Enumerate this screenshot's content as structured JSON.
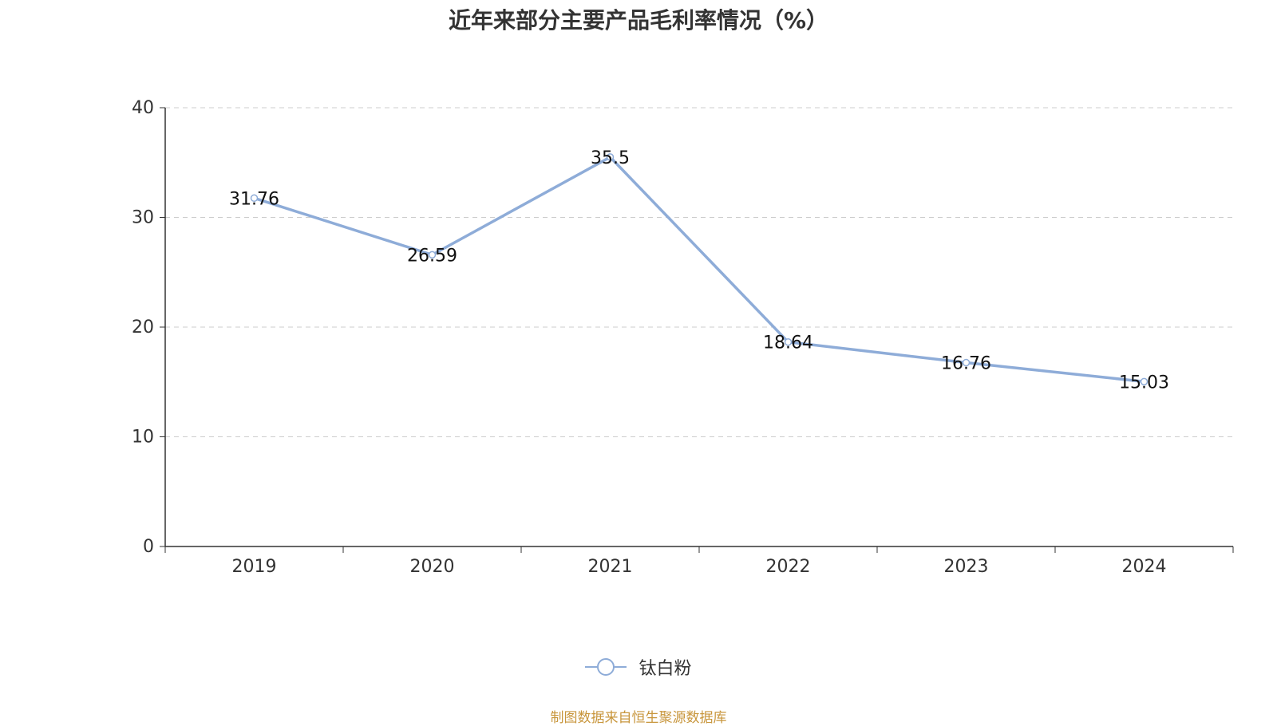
{
  "chart_data": {
    "type": "line",
    "title": "近年来部分主要产品毛利率情况（%）",
    "categories": [
      "2019",
      "2020",
      "2021",
      "2022",
      "2023",
      "2024"
    ],
    "series": [
      {
        "name": "钛白粉",
        "values": [
          31.76,
          26.59,
          35.5,
          18.64,
          16.76,
          15.03
        ],
        "color": "#8eacd8"
      }
    ],
    "data_labels": [
      "31.76",
      "26.59",
      "35.5",
      "18.64",
      "16.76",
      "15.03"
    ],
    "y_ticks": [
      "0",
      "10",
      "20",
      "30",
      "40"
    ],
    "ylim": [
      0,
      40
    ],
    "grid": true,
    "legend_position": "bottom"
  },
  "source_note": "制图数据来自恒生聚源数据库"
}
